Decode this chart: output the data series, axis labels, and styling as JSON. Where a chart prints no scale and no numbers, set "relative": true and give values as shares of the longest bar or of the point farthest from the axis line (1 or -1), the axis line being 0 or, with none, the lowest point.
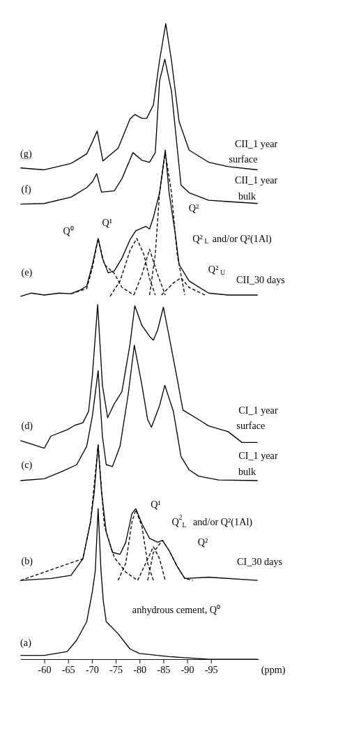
{
  "chart_data": {
    "type": "line",
    "relative": true,
    "xlabel": "(ppm)",
    "xlim": [
      -55,
      -105
    ],
    "xticks": [
      -60,
      -65,
      -70,
      -75,
      -80,
      -85,
      -90,
      -95
    ],
    "series": [
      {
        "color": "#000000",
        "line_style": "solid",
        "x": [
          -55.0,
          -60.0,
          -65.6,
          -68.9,
          -70.1,
          -71.1,
          -72.3,
          -75.5,
          -78.0,
          -79.0,
          -80.5,
          -81.5,
          -82.9,
          -84.2,
          -85.5,
          -86.7,
          -88.3,
          -90.4,
          -94.5,
          -98.6,
          -104.8
        ],
        "values": [
          0.773,
          0.77,
          0.78,
          0.795,
          0.814,
          0.831,
          0.784,
          0.804,
          0.85,
          0.857,
          0.851,
          0.851,
          0.872,
          0.942,
          1.0,
          0.942,
          0.846,
          0.801,
          0.782,
          0.775,
          0.77
        ]
      },
      {
        "color": "#000000",
        "line_style": "solid",
        "x": [
          -55.0,
          -60.0,
          -65.6,
          -68.9,
          -70.1,
          -71.0,
          -72.0,
          -74.7,
          -76.3,
          -78.6,
          -80.5,
          -82.1,
          -83.3,
          -84.2,
          -85.3,
          -86.7,
          -88.7,
          -90.4,
          -94.5,
          -98.6,
          -104.8
        ],
        "values": [
          0.716,
          0.717,
          0.727,
          0.742,
          0.751,
          0.764,
          0.735,
          0.737,
          0.756,
          0.797,
          0.785,
          0.782,
          0.797,
          0.91,
          0.944,
          0.894,
          0.746,
          0.734,
          0.722,
          0.72,
          0.717
        ]
      },
      {
        "color": "#000000",
        "line_style": "solid",
        "x": [
          -55.0,
          -57.3,
          -60.0,
          -63.1,
          -65.6,
          -67.6,
          -68.9,
          -70.1,
          -71.3,
          -72.2,
          -73.4,
          -74.7,
          -76.3,
          -78.0,
          -79.2,
          -81.3,
          -82.1,
          -82.9,
          -84.2,
          -85.4,
          -86.2,
          -87.5,
          -88.3,
          -90.4,
          -94.5,
          -98.6,
          -104.8
        ],
        "values": [
          0.571,
          0.576,
          0.573,
          0.576,
          0.575,
          0.581,
          0.587,
          0.621,
          0.662,
          0.631,
          0.608,
          0.611,
          0.631,
          0.66,
          0.674,
          0.681,
          0.677,
          0.695,
          0.734,
          0.801,
          0.734,
          0.669,
          0.621,
          0.595,
          0.576,
          0.573,
          0.573
        ]
      },
      {
        "color": "#000000",
        "line_style": "dashed",
        "x": [
          -65.6,
          -68.9,
          -70.1,
          -71.3,
          -72.6,
          -74.7,
          -76.3,
          -78.8
        ],
        "values": [
          0.575,
          0.583,
          0.616,
          0.662,
          0.621,
          0.607,
          0.585,
          0.573
        ]
      },
      {
        "color": "#000000",
        "line_style": "dashed",
        "x": [
          -73.8,
          -75.9,
          -78.0,
          -79.4,
          -80.9,
          -82.1,
          -83.3
        ],
        "values": [
          0.571,
          0.595,
          0.643,
          0.662,
          0.637,
          0.599,
          0.573
        ]
      },
      {
        "color": "#000000",
        "line_style": "dashed",
        "x": [
          -78.8,
          -80.5,
          -82.1,
          -83.8,
          -85.4
        ],
        "values": [
          0.573,
          0.605,
          0.645,
          0.605,
          0.573
        ]
      },
      {
        "color": "#000000",
        "line_style": "dashed",
        "x": [
          -82.1,
          -83.3,
          -84.2,
          -85.4,
          -86.7,
          -87.9,
          -89.5
        ],
        "values": [
          0.573,
          0.637,
          0.734,
          0.797,
          0.734,
          0.637,
          0.573
        ]
      },
      {
        "color": "#000000",
        "line_style": "dashed",
        "x": [
          -84.6,
          -87.1,
          -88.7,
          -90.4,
          -93.7
        ],
        "values": [
          0.573,
          0.592,
          0.6,
          0.585,
          0.573
        ]
      },
      {
        "color": "#000000",
        "line_style": "solid",
        "x": [
          -55.0,
          -60.0,
          -61.4,
          -64.8,
          -66.4,
          -68.1,
          -69.3,
          -70.1,
          -71.2,
          -72.2,
          -73.3,
          -74.7,
          -76.3,
          -78.0,
          -79.0,
          -80.5,
          -82.1,
          -82.9,
          -83.8,
          -85.0,
          -86.2,
          -87.9,
          -89.1,
          -92.4,
          -94.5,
          -98.6,
          -101.5,
          -104.8
        ],
        "values": [
          0.344,
          0.332,
          0.351,
          0.361,
          0.368,
          0.372,
          0.39,
          0.447,
          0.558,
          0.431,
          0.38,
          0.402,
          0.421,
          0.496,
          0.556,
          0.525,
          0.508,
          0.502,
          0.518,
          0.554,
          0.508,
          0.441,
          0.392,
          0.377,
          0.367,
          0.358,
          0.341,
          0.341
        ]
      },
      {
        "color": "#000000",
        "line_style": "solid",
        "x": [
          -55.0,
          -60.0,
          -63.9,
          -66.8,
          -68.9,
          -70.1,
          -71.3,
          -72.2,
          -73.0,
          -74.3,
          -75.9,
          -77.6,
          -78.9,
          -80.5,
          -81.7,
          -82.5,
          -84.2,
          -85.3,
          -87.1,
          -88.7,
          -90.4,
          -92.4,
          -96.6,
          -104.8
        ],
        "values": [
          0.281,
          0.284,
          0.296,
          0.306,
          0.335,
          0.383,
          0.454,
          0.351,
          0.306,
          0.303,
          0.335,
          0.416,
          0.494,
          0.431,
          0.377,
          0.365,
          0.399,
          0.431,
          0.39,
          0.319,
          0.298,
          0.288,
          0.282,
          0.281
        ]
      },
      {
        "color": "#000000",
        "line_style": "solid",
        "x": [
          -55.0,
          -61.4,
          -65.6,
          -68.1,
          -69.7,
          -70.5,
          -71.3,
          -72.0,
          -73.0,
          -74.3,
          -75.9,
          -77.1,
          -78.4,
          -79.2,
          -80.5,
          -82.1,
          -83.8,
          -84.8,
          -86.2,
          -87.9,
          -89.5,
          -94.5,
          -104.8
        ],
        "values": [
          0.124,
          0.127,
          0.132,
          0.158,
          0.216,
          0.264,
          0.337,
          0.264,
          0.2,
          0.168,
          0.165,
          0.184,
          0.229,
          0.237,
          0.213,
          0.19,
          0.184,
          0.187,
          0.171,
          0.146,
          0.127,
          0.129,
          0.124
        ]
      },
      {
        "color": "#000000",
        "line_style": "dashed",
        "x": [
          -55.0,
          -68.1,
          -69.7,
          -71.3,
          -72.6,
          -74.7,
          -77.1,
          -79.6
        ],
        "values": [
          0.124,
          0.158,
          0.216,
          0.337,
          0.21,
          0.16,
          0.137,
          0.124
        ]
      },
      {
        "color": "#000000",
        "line_style": "dashed",
        "x": [
          -75.5,
          -77.1,
          -78.4,
          -79.2,
          -80.5,
          -81.7,
          -82.9
        ],
        "values": [
          0.124,
          0.151,
          0.216,
          0.235,
          0.209,
          0.151,
          0.124
        ]
      },
      {
        "color": "#000000",
        "line_style": "dashed",
        "x": [
          -79.6,
          -81.3,
          -82.9,
          -84.2,
          -85.4
        ],
        "values": [
          0.124,
          0.151,
          0.177,
          0.158,
          0.124
        ]
      },
      {
        "color": "#000000",
        "line_style": "dashed",
        "x": [
          -81.7,
          -82.9,
          -84.8,
          -86.2,
          -87.9,
          -89.5,
          -91.2
        ],
        "values": [
          0.124,
          0.168,
          0.187,
          0.171,
          0.146,
          0.127,
          0.124
        ]
      },
      {
        "color": "#000000",
        "line_style": "solid",
        "x": [
          -55.0,
          -60.0,
          -64.8,
          -66.8,
          -68.9,
          -70.1,
          -70.7,
          -71.3,
          -71.9,
          -72.4,
          -73.0,
          -75.5,
          -78.0,
          -80.0,
          -86.2,
          -94.5,
          -104.8
        ],
        "values": [
          0.006,
          0.006,
          0.012,
          0.03,
          0.059,
          0.107,
          0.139,
          0.237,
          0.139,
          0.091,
          0.059,
          0.04,
          0.016,
          0.009,
          0.004,
          0.0,
          0.0
        ]
      }
    ],
    "annotations": [
      "(g)",
      "CII_1 year",
      "surface",
      "(f)",
      "CII_1 year",
      "bulk",
      "Q²",
      "Q¹",
      "Q⁰",
      "Q²$_{L}$ and/or Q²(1Al)",
      "(e)",
      "Q²$_{U}$",
      "CII_30 days",
      "(d)",
      "CI_1 year",
      "surface",
      "(c)",
      "CI_1 year",
      "bulk",
      "Q¹",
      "Q$^{2}$$_{L}$  and/or Q²(1Al)",
      "Q²",
      "(b)",
      "CI_30 days",
      "anhydrous cement, Q⁰",
      "(a)"
    ]
  }
}
